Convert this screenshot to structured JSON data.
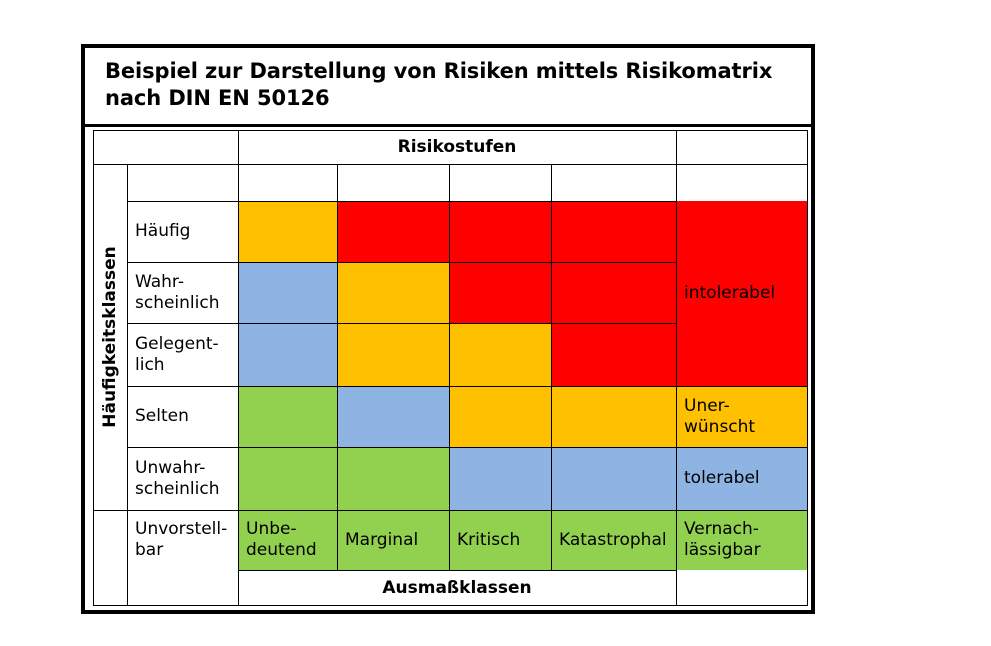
{
  "title": "Beispiel zur Darstellung von Risiken mittels Risikomatrix nach DIN EN 50126",
  "colors": {
    "intolerabel": "#ff0000",
    "unerwuenscht": "#ffc000",
    "tolerabel": "#8db4e2",
    "vernachlaessigbar": "#92d050"
  },
  "matrix": {
    "column_header": "Risikostufen",
    "row_axis_label": "Häufigkeitsklassen",
    "column_axis_label": "Ausmaßklassen",
    "rows": [
      {
        "label": "Häufig",
        "cells": [
          "unerwuenscht",
          "intolerabel",
          "intolerabel",
          "intolerabel"
        ]
      },
      {
        "label": "Wahr-\nscheinlich",
        "cells": [
          "tolerabel",
          "unerwuenscht",
          "intolerabel",
          "intolerabel"
        ]
      },
      {
        "label": "Gelegent-\nlich",
        "cells": [
          "tolerabel",
          "unerwuenscht",
          "unerwuenscht",
          "intolerabel"
        ]
      },
      {
        "label": "Selten",
        "cells": [
          "vernachlaessigbar",
          "tolerabel",
          "unerwuenscht",
          "unerwuenscht"
        ]
      },
      {
        "label": "Unwahr-\nscheinlich",
        "cells": [
          "vernachlaessigbar",
          "vernachlaessigbar",
          "tolerabel",
          "tolerabel"
        ]
      },
      {
        "label": "Unvorstell-\nbar",
        "cells": [
          "vernachlaessigbar",
          "vernachlaessigbar",
          "vernachlaessigbar",
          "vernachlaessigbar"
        ]
      }
    ],
    "columns": [
      "Unbe-\ndeutend",
      "Marginal",
      "Kritisch",
      "Katastrophal"
    ],
    "legend": [
      {
        "level": "intolerabel",
        "label": "intolerabel"
      },
      {
        "level": "unerwuenscht",
        "label": "Uner-\nwünscht"
      },
      {
        "level": "tolerabel",
        "label": "tolerabel"
      },
      {
        "level": "vernachlaessigbar",
        "label": "Vernach-\nlässigbar"
      }
    ]
  }
}
